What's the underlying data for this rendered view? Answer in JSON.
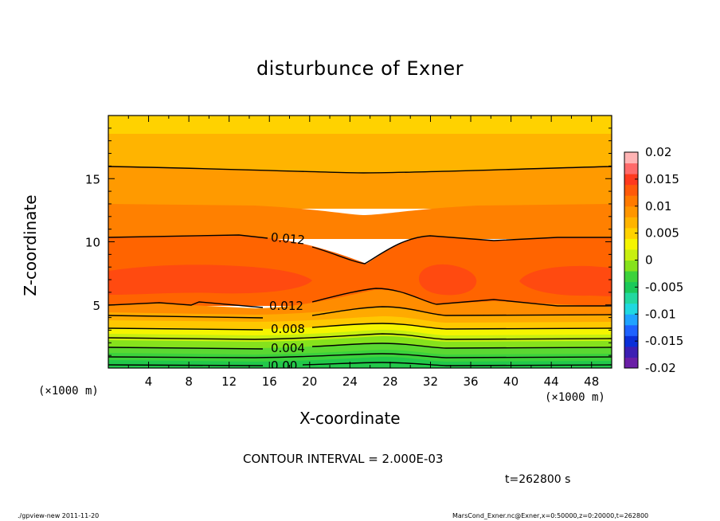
{
  "figure": {
    "interval_text": "CONTOUR INTERVAL = 2.000E-03",
    "time_text": "t=262800 s",
    "footer_left": "./gpview-new   2011-11-20",
    "footer_right": "MarsCond_Exner.nc@Exner,x=0:50000,z=0:20000,t=262800",
    "x_unit_left": "(×1000 m)",
    "x_unit_right": "(×1000 m)"
  },
  "chart_data": {
    "type": "heatmap",
    "title": "disturbunce of Exner",
    "xlabel": "X-coordinate",
    "ylabel": "Z-coordinate",
    "xlim": [
      0,
      50
    ],
    "ylim": [
      0,
      20
    ],
    "x_ticks": [
      4,
      8,
      12,
      16,
      20,
      24,
      28,
      32,
      36,
      40,
      44,
      48
    ],
    "y_ticks": [
      5,
      10,
      15
    ],
    "colorbar": {
      "range": [
        -0.02,
        0.02
      ],
      "tick_labels": [
        "0.02",
        "0.015",
        "0.01",
        "0.005",
        "0",
        "-0.005",
        "-0.01",
        "-0.015",
        "-0.02"
      ],
      "tick_values": [
        0.02,
        0.015,
        0.01,
        0.005,
        0,
        -0.005,
        -0.01,
        -0.015,
        -0.02
      ],
      "colors": [
        "#6a1ea6",
        "#3c1fb3",
        "#0a2fd8",
        "#1e62ff",
        "#1fa3ff",
        "#1fd8e0",
        "#22d8a0",
        "#1bc95a",
        "#3cd23c",
        "#86e21c",
        "#c8ef10",
        "#f5f500",
        "#ffd200",
        "#ffb400",
        "#ff9600",
        "#ff7a00",
        "#ff5a0a",
        "#ff3a1e",
        "#ff6a6a",
        "#ffb4b4"
      ]
    },
    "contour_interval": 0.002,
    "contour_labels": [
      {
        "text": "0.012",
        "x": 18.3,
        "z": 10.2
      },
      {
        "text": "0.012",
        "x": 18.3,
        "z": 5.0
      },
      {
        "text": "0.008",
        "x": 18.3,
        "z": 3.1
      },
      {
        "text": "0.004",
        "x": 18.3,
        "z": 1.6
      },
      {
        "text": "0.00",
        "x": 18.3,
        "z": 0.3
      }
    ],
    "structure": [
      {
        "z_range": [
          0,
          3
        ],
        "values": "0.000 to 0.008 (green to yellow)"
      },
      {
        "z_range": [
          3,
          5
        ],
        "values": "0.008 to 0.012"
      },
      {
        "z_range": [
          5,
          10
        ],
        "values": "0.012 to 0.015, maxima near z=7"
      },
      {
        "z_range": [
          10,
          16
        ],
        "values": "0.012 to 0.010"
      },
      {
        "z_range": [
          16,
          20
        ],
        "values": "0.010 to 0.006"
      }
    ]
  }
}
